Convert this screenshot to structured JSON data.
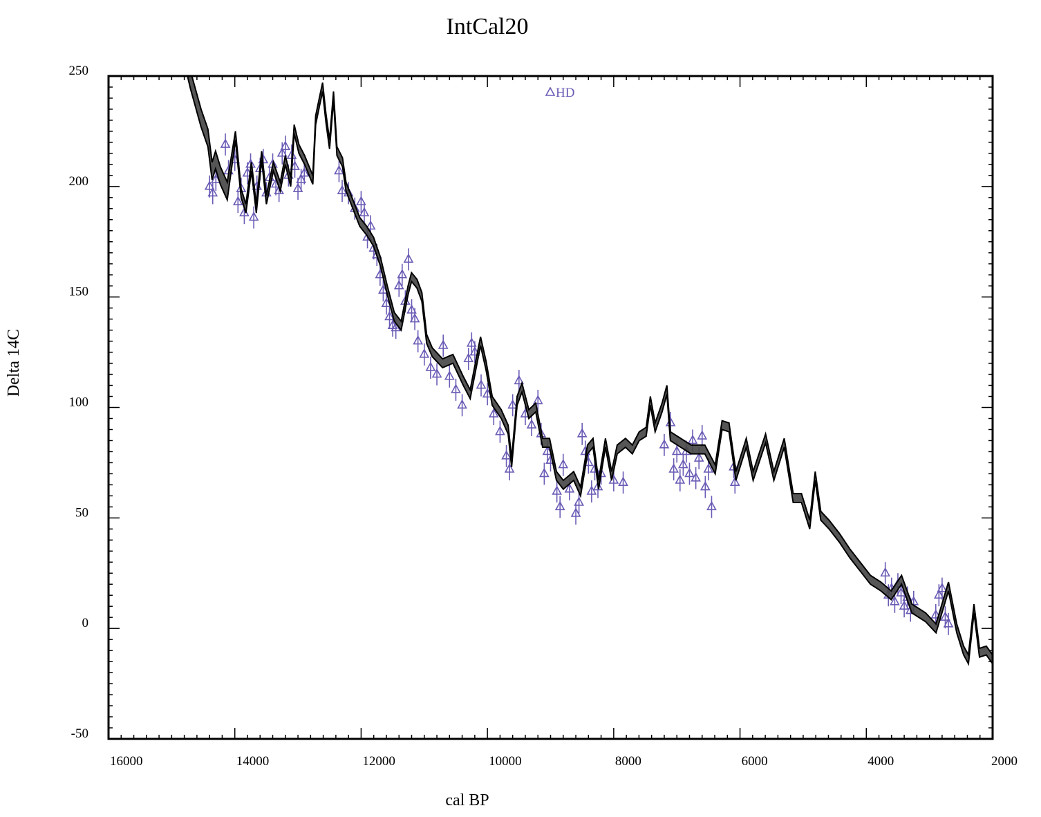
{
  "chart_data": {
    "type": "line",
    "title": "IntCal20",
    "xlabel": "cal BP",
    "ylabel": "Delta 14C",
    "xlim": [
      16000,
      2000
    ],
    "x_reversed": true,
    "ylim": [
      -50,
      250
    ],
    "xticks": [
      16000,
      14000,
      12000,
      10000,
      8000,
      6000,
      4000,
      2000
    ],
    "xtick_labels": [
      "16000",
      "14000",
      "12000",
      "10000",
      "8000",
      "6000",
      "4000",
      "2000"
    ],
    "yticks": [
      250,
      200,
      150,
      100,
      50,
      0,
      -50
    ],
    "ytick_labels": [
      "250",
      "200",
      "150",
      "100",
      "50",
      "0",
      "-50"
    ],
    "grid": false,
    "legend_placement": "top-center",
    "colors": {
      "curve_fill": "#444444",
      "curve_line": "#000000",
      "data": "#6b5bb5"
    },
    "curve": {
      "points": [
        [
          14800,
          260
        ],
        [
          14700,
          248
        ],
        [
          14535,
          231
        ],
        [
          14426,
          222
        ],
        [
          14360,
          207
        ],
        [
          14305,
          212
        ],
        [
          14230,
          205
        ],
        [
          14120,
          198
        ],
        [
          13990,
          223
        ],
        [
          13900,
          197
        ],
        [
          13825,
          190
        ],
        [
          13737,
          209
        ],
        [
          13660,
          190
        ],
        [
          13575,
          214
        ],
        [
          13500,
          194
        ],
        [
          13390,
          209
        ],
        [
          13280,
          200
        ],
        [
          13200,
          212
        ],
        [
          13115,
          202
        ],
        [
          13060,
          226
        ],
        [
          12985,
          217
        ],
        [
          12895,
          212
        ],
        [
          12765,
          203
        ],
        [
          12720,
          230
        ],
        [
          12655,
          239
        ],
        [
          12610,
          245
        ],
        [
          12557,
          231
        ],
        [
          12500,
          219
        ],
        [
          12437,
          241
        ],
        [
          12383,
          216
        ],
        [
          12295,
          211
        ],
        [
          12240,
          200
        ],
        [
          12131,
          192
        ],
        [
          12022,
          184
        ],
        [
          11912,
          180
        ],
        [
          11803,
          175
        ],
        [
          11694,
          166
        ],
        [
          11585,
          153
        ],
        [
          11475,
          141
        ],
        [
          11366,
          137
        ],
        [
          11257,
          153
        ],
        [
          11202,
          159
        ],
        [
          11115,
          156
        ],
        [
          11038,
          150
        ],
        [
          10962,
          131
        ],
        [
          10874,
          125
        ],
        [
          10710,
          120
        ],
        [
          10546,
          122
        ],
        [
          10382,
          112
        ],
        [
          10273,
          106
        ],
        [
          10164,
          122
        ],
        [
          10109,
          130
        ],
        [
          10022,
          119
        ],
        [
          9924,
          103
        ],
        [
          9781,
          97
        ],
        [
          9672,
          90
        ],
        [
          9617,
          75
        ],
        [
          9530,
          103
        ],
        [
          9453,
          109
        ],
        [
          9344,
          97
        ],
        [
          9235,
          100
        ],
        [
          9126,
          84
        ],
        [
          9016,
          84
        ],
        [
          8907,
          69
        ],
        [
          8798,
          65
        ],
        [
          8634,
          69
        ],
        [
          8525,
          62
        ],
        [
          8415,
          81
        ],
        [
          8328,
          84
        ],
        [
          8240,
          65
        ],
        [
          8131,
          84
        ],
        [
          8033,
          69
        ],
        [
          7945,
          81
        ],
        [
          7814,
          84
        ],
        [
          7705,
          81
        ],
        [
          7596,
          87
        ],
        [
          7486,
          89
        ],
        [
          7420,
          103
        ],
        [
          7344,
          91
        ],
        [
          7234,
          100
        ],
        [
          7158,
          108
        ],
        [
          7103,
          87
        ],
        [
          6939,
          84
        ],
        [
          6775,
          81
        ],
        [
          6557,
          81
        ],
        [
          6393,
          72
        ],
        [
          6284,
          92
        ],
        [
          6174,
          91
        ],
        [
          6065,
          69
        ],
        [
          5901,
          84
        ],
        [
          5792,
          69
        ],
        [
          5595,
          86
        ],
        [
          5464,
          69
        ],
        [
          5300,
          84
        ],
        [
          5158,
          59
        ],
        [
          5027,
          59
        ],
        [
          4896,
          47
        ],
        [
          4809,
          69
        ],
        [
          4721,
          51
        ],
        [
          4590,
          47
        ],
        [
          4426,
          41
        ],
        [
          4262,
          34
        ],
        [
          4098,
          28
        ],
        [
          3934,
          22
        ],
        [
          3770,
          19
        ],
        [
          3606,
          15
        ],
        [
          3442,
          22
        ],
        [
          3278,
          9
        ],
        [
          3060,
          5
        ],
        [
          2896,
          0
        ],
        [
          2699,
          19
        ],
        [
          2568,
          0
        ],
        [
          2459,
          -10
        ],
        [
          2383,
          -14
        ],
        [
          2295,
          9
        ],
        [
          2208,
          -11
        ],
        [
          2100,
          -10
        ],
        [
          2000,
          -14
        ]
      ],
      "sigma_before_14000": 4,
      "sigma": 2
    },
    "series": [
      {
        "name": "HD",
        "marker": "triangle",
        "error": 5,
        "points": [
          [
            14400,
            200
          ],
          [
            14350,
            197
          ],
          [
            14300,
            203
          ],
          [
            14150,
            219
          ],
          [
            14100,
            207
          ],
          [
            14000,
            212
          ],
          [
            13950,
            193
          ],
          [
            13900,
            199
          ],
          [
            13850,
            188
          ],
          [
            13800,
            206
          ],
          [
            13750,
            210
          ],
          [
            13700,
            186
          ],
          [
            13650,
            200
          ],
          [
            13600,
            208
          ],
          [
            13550,
            212
          ],
          [
            13500,
            197
          ],
          [
            13450,
            204
          ],
          [
            13400,
            210
          ],
          [
            13350,
            201
          ],
          [
            13300,
            198
          ],
          [
            13250,
            215
          ],
          [
            13200,
            218
          ],
          [
            13150,
            205
          ],
          [
            13100,
            214
          ],
          [
            13050,
            209
          ],
          [
            13000,
            199
          ],
          [
            12950,
            203
          ],
          [
            12900,
            206
          ],
          [
            12350,
            207
          ],
          [
            12300,
            198
          ],
          [
            12200,
            197
          ],
          [
            12100,
            190
          ],
          [
            12000,
            193
          ],
          [
            11950,
            188
          ],
          [
            11900,
            177
          ],
          [
            11850,
            182
          ],
          [
            11800,
            172
          ],
          [
            11750,
            169
          ],
          [
            11700,
            160
          ],
          [
            11650,
            153
          ],
          [
            11600,
            147
          ],
          [
            11550,
            141
          ],
          [
            11500,
            137
          ],
          [
            11450,
            136
          ],
          [
            11400,
            155
          ],
          [
            11350,
            160
          ],
          [
            11300,
            148
          ],
          [
            11250,
            167
          ],
          [
            11200,
            144
          ],
          [
            11150,
            140
          ],
          [
            11100,
            130
          ],
          [
            11000,
            124
          ],
          [
            10900,
            118
          ],
          [
            10800,
            115
          ],
          [
            10700,
            128
          ],
          [
            10600,
            114
          ],
          [
            10500,
            108
          ],
          [
            10400,
            101
          ],
          [
            10300,
            122
          ],
          [
            10250,
            129
          ],
          [
            10200,
            125
          ],
          [
            10100,
            110
          ],
          [
            10000,
            106
          ],
          [
            9900,
            97
          ],
          [
            9800,
            89
          ],
          [
            9700,
            78
          ],
          [
            9650,
            72
          ],
          [
            9600,
            101
          ],
          [
            9500,
            112
          ],
          [
            9400,
            97
          ],
          [
            9300,
            92
          ],
          [
            9200,
            103
          ],
          [
            9150,
            88
          ],
          [
            9100,
            70
          ],
          [
            9050,
            80
          ],
          [
            9000,
            76
          ],
          [
            8900,
            62
          ],
          [
            8850,
            55
          ],
          [
            8800,
            74
          ],
          [
            8700,
            63
          ],
          [
            8600,
            52
          ],
          [
            8550,
            57
          ],
          [
            8500,
            88
          ],
          [
            8450,
            80
          ],
          [
            8400,
            75
          ],
          [
            8350,
            62
          ],
          [
            8300,
            72
          ],
          [
            8250,
            64
          ],
          [
            8200,
            70
          ],
          [
            8000,
            67
          ],
          [
            7850,
            66
          ],
          [
            7200,
            83
          ],
          [
            7100,
            93
          ],
          [
            7050,
            72
          ],
          [
            7000,
            80
          ],
          [
            6950,
            67
          ],
          [
            6900,
            74
          ],
          [
            6850,
            80
          ],
          [
            6800,
            70
          ],
          [
            6750,
            85
          ],
          [
            6700,
            68
          ],
          [
            6650,
            77
          ],
          [
            6600,
            87
          ],
          [
            6550,
            64
          ],
          [
            6500,
            72
          ],
          [
            6450,
            55
          ],
          [
            6100,
            73
          ],
          [
            6080,
            66
          ],
          [
            3700,
            25
          ],
          [
            3650,
            15
          ],
          [
            3600,
            18
          ],
          [
            3550,
            12
          ],
          [
            3500,
            20
          ],
          [
            3450,
            16
          ],
          [
            3400,
            10
          ],
          [
            3350,
            14
          ],
          [
            3300,
            8
          ],
          [
            3250,
            12
          ],
          [
            2900,
            6
          ],
          [
            2850,
            15
          ],
          [
            2800,
            18
          ],
          [
            2750,
            5
          ],
          [
            2700,
            2
          ]
        ]
      }
    ]
  }
}
